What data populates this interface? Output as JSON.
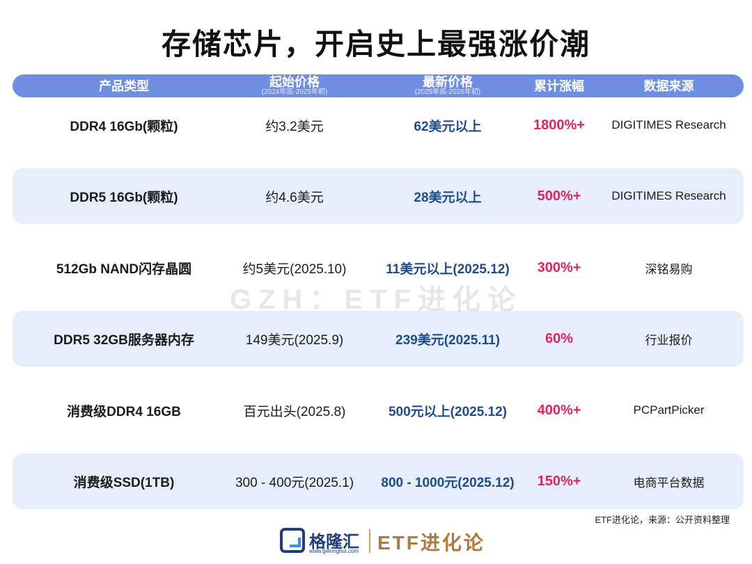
{
  "title": "存储芯片，开启史上最强涨价潮",
  "header": {
    "product": "产品类型",
    "start": "起始价格",
    "start_sub": "(2024年底-2025年初)",
    "latest": "最新价格",
    "latest_sub": "(2025年底-2026年初)",
    "rise": "累计涨幅",
    "source": "数据来源"
  },
  "rows": [
    {
      "product": "DDR4 16Gb(颗粒)",
      "start": "约3.2美元",
      "latest": "62美元以上",
      "rise": "1800%+",
      "source": "DIGITIMES Research"
    },
    {
      "product": "DDR5 16Gb(颗粒)",
      "start": "约4.6美元",
      "latest": "28美元以上",
      "rise": "500%+",
      "source": "DIGITIMES Research"
    },
    {
      "product": "512Gb NAND闪存晶圆",
      "start": "约5美元(2025.10)",
      "latest": "11美元以上(2025.12)",
      "rise": "300%+",
      "source": "深铭易购"
    },
    {
      "product": "DDR5 32GB服务器内存",
      "start": "149美元(2025.9)",
      "latest": "239美元(2025.11)",
      "rise": "60%",
      "source": "行业报价"
    },
    {
      "product": "消费级DDR4 16GB",
      "start": "百元出头(2025.8)",
      "latest": "500元以上(2025.12)",
      "rise": "400%+",
      "source": "PCPartPicker"
    },
    {
      "product": "消费级SSD(1TB)",
      "start": "300 - 400元(2025.1)",
      "latest": "800 - 1000元(2025.12)",
      "rise": "150%+",
      "source": "电商平台数据"
    }
  ],
  "watermark": "GZH：ETF进化论",
  "note": "ETF进化论，来源：公开资料整理",
  "footer": {
    "logo_name": "格隆汇",
    "logo_url": "www.gelonghui.com",
    "brand": "ETF进化论"
  },
  "colors": {
    "header_bg": "#6f8ee0",
    "row_shade": "#e7eefb",
    "latest_price": "#1c4b8e",
    "rise": "#e0245e",
    "brand": "#b07a3c"
  }
}
